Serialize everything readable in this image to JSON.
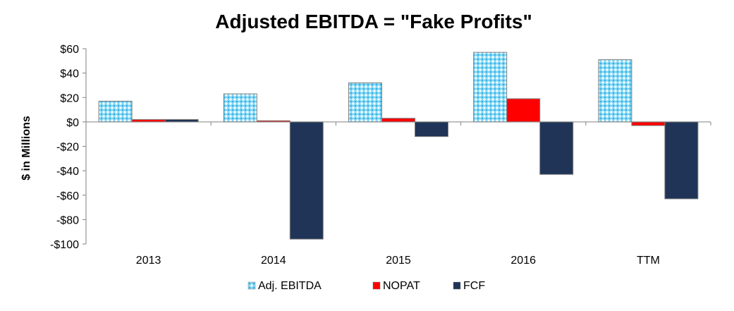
{
  "chart_data": {
    "type": "bar",
    "title": "Adjusted EBITDA = \"Fake Profits\"",
    "xlabel": "",
    "ylabel": "$ in Millions",
    "categories": [
      "2013",
      "2014",
      "2015",
      "2016",
      "TTM"
    ],
    "ylim": [
      -100,
      60
    ],
    "yticks": [
      60,
      40,
      20,
      0,
      -20,
      -40,
      -60,
      -80,
      -100
    ],
    "ytick_labels": [
      "$60",
      "$40",
      "$20",
      "$0",
      "-$20",
      "-$40",
      "-$60",
      "-$80",
      "-$100"
    ],
    "grid": false,
    "legend_position": "bottom",
    "series": [
      {
        "name": "Adj. EBITDA",
        "values": [
          17,
          23,
          32,
          57,
          51
        ],
        "color": "#5bc0eb",
        "pattern": "crosshatch"
      },
      {
        "name": "NOPAT",
        "values": [
          2,
          1,
          3,
          19,
          -3
        ],
        "color": "#ff0000"
      },
      {
        "name": "FCF",
        "values": [
          2,
          -96,
          -12,
          -43,
          -63
        ],
        "color": "#1f3457"
      }
    ]
  }
}
